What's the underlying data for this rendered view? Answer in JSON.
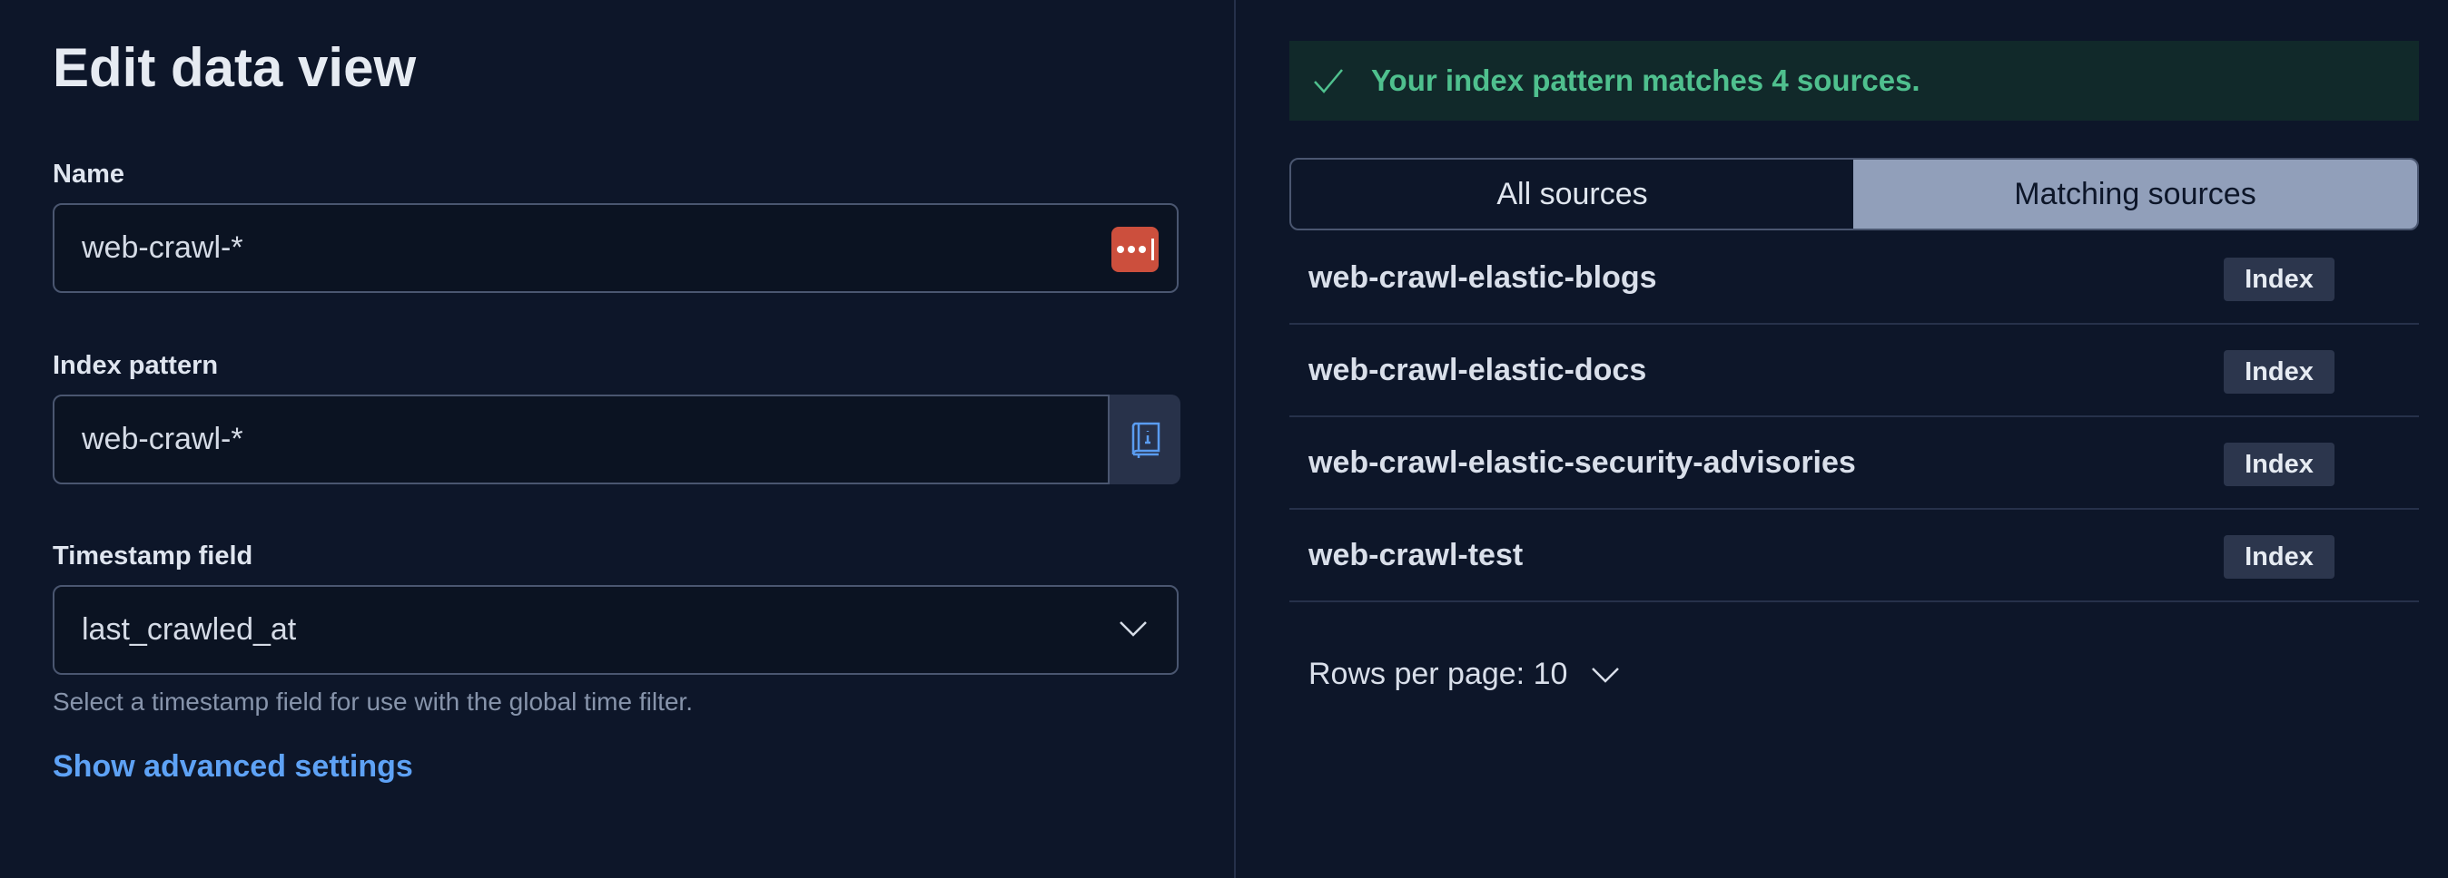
{
  "header": {
    "title": "Edit data view"
  },
  "form": {
    "name": {
      "label": "Name",
      "value": "web-crawl-*"
    },
    "index_pattern": {
      "label": "Index pattern",
      "value": "web-crawl-*"
    },
    "timestamp": {
      "label": "Timestamp field",
      "value": "last_crawled_at",
      "help": "Select a timestamp field for use with the global time filter."
    },
    "advanced_link": "Show advanced settings"
  },
  "callout": {
    "text": "Your index pattern matches 4 sources.",
    "color": "#4fc08e"
  },
  "tabs": [
    {
      "label": "All sources",
      "selected": false
    },
    {
      "label": "Matching sources",
      "selected": true
    }
  ],
  "sources": [
    {
      "name": "web-crawl-elastic-blogs",
      "type": "Index"
    },
    {
      "name": "web-crawl-elastic-docs",
      "type": "Index"
    },
    {
      "name": "web-crawl-elastic-security-advisories",
      "type": "Index"
    },
    {
      "name": "web-crawl-test",
      "type": "Index"
    }
  ],
  "pagination": {
    "rows_per_page": "Rows per page: 10"
  }
}
